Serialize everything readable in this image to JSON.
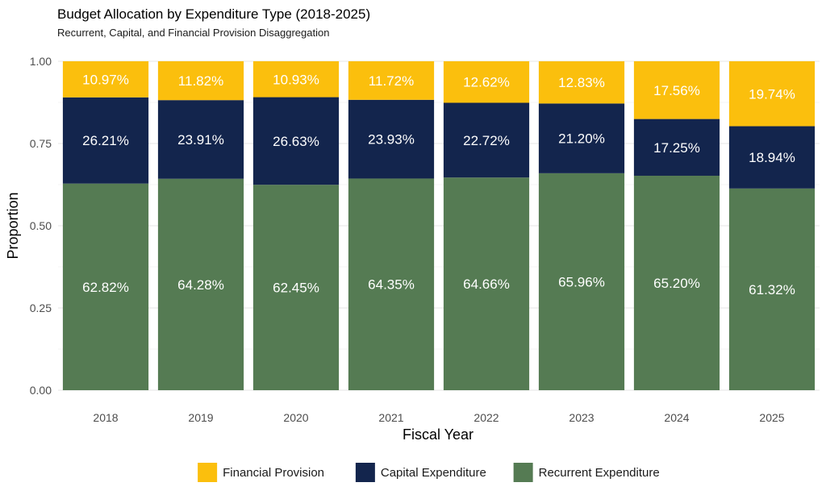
{
  "chart_data": {
    "type": "bar",
    "stacked": true,
    "title": "Budget Allocation by Expenditure Type (2018-2025)",
    "subtitle": "Recurrent, Capital, and Financial Provision Disaggregation",
    "xlabel": "Fiscal Year",
    "ylabel": "Proportion",
    "ylim": [
      0,
      1
    ],
    "yticks": [
      "0.00",
      "0.25",
      "0.50",
      "0.75",
      "1.00"
    ],
    "grid": true,
    "legend_position": "bottom",
    "categories": [
      "2018",
      "2019",
      "2020",
      "2021",
      "2022",
      "2023",
      "2024",
      "2025"
    ],
    "series": [
      {
        "name": "Recurrent Expenditure",
        "color": "#557b53",
        "values": [
          0.6282,
          0.6428,
          0.6245,
          0.6435,
          0.6466,
          0.6596,
          0.652,
          0.6132
        ],
        "labels": [
          "62.82%",
          "64.28%",
          "62.45%",
          "64.35%",
          "64.66%",
          "65.96%",
          "65.20%",
          "61.32%"
        ]
      },
      {
        "name": "Capital Expenditure",
        "color": "#13254d",
        "values": [
          0.2621,
          0.2391,
          0.2663,
          0.2393,
          0.2272,
          0.212,
          0.1725,
          0.1894
        ],
        "labels": [
          "26.21%",
          "23.91%",
          "26.63%",
          "23.93%",
          "22.72%",
          "21.20%",
          "17.25%",
          "18.94%"
        ]
      },
      {
        "name": "Financial Provision",
        "color": "#fbbf0d",
        "values": [
          0.1097,
          0.1182,
          0.1093,
          0.1172,
          0.1262,
          0.1283,
          0.1756,
          0.1974
        ],
        "labels": [
          "10.97%",
          "11.82%",
          "10.93%",
          "11.72%",
          "12.62%",
          "12.83%",
          "17.56%",
          "19.74%"
        ]
      }
    ],
    "legend_order": [
      "Financial Provision",
      "Capital Expenditure",
      "Recurrent Expenditure"
    ]
  }
}
